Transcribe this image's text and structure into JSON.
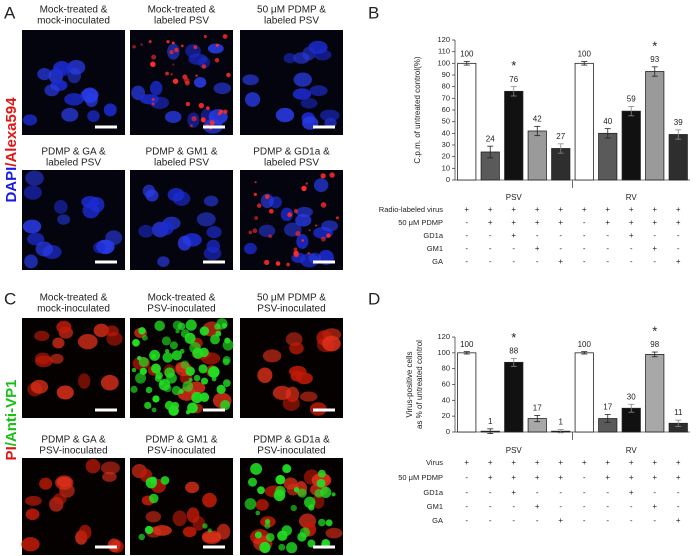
{
  "panels": [
    {
      "label": "A",
      "stain": [
        "DAPI",
        "/Alexa594"
      ],
      "stain_colors": [
        "#1a1ae6",
        "#e01515"
      ],
      "images": [
        {
          "caption": [
            "Mock-treated &",
            "mock-inoculated"
          ]
        },
        {
          "caption": [
            "Mock-treated &",
            "labeled PSV"
          ]
        },
        {
          "caption": [
            "50 μM PDMP &",
            "labeled PSV"
          ]
        },
        {
          "caption": [
            "PDMP & GA &",
            "labeled PSV"
          ]
        },
        {
          "caption": [
            "PDMP & GM1 &",
            "labeled PSV"
          ]
        },
        {
          "caption": [
            "PDMP & GD1a &",
            "labeled PSV"
          ]
        }
      ]
    },
    {
      "label": "C",
      "stain": [
        "PI",
        "/Anti-VP1"
      ],
      "stain_colors": [
        "#e01515",
        "#18c018"
      ],
      "images": [
        {
          "caption": [
            "Mock-treated &",
            "mock-inoculated"
          ]
        },
        {
          "caption": [
            "Mock-treated &",
            "PSV-inoculated"
          ]
        },
        {
          "caption": [
            "50 μM PDMP &",
            "PSV-inoculated"
          ]
        },
        {
          "caption": [
            "PDMP & GA &",
            "PSV-inoculated"
          ]
        },
        {
          "caption": [
            "PDMP & GM1 &",
            "PSV-inoculated"
          ]
        },
        {
          "caption": [
            "PDMP & GD1a &",
            "PSV-inoculated"
          ]
        }
      ]
    }
  ],
  "chart_data": [
    {
      "type": "bar",
      "panel_label": "B",
      "y_label": [
        "C.p.m. of untreated control(%)"
      ],
      "categories": [
        "PSV",
        "RV"
      ],
      "ylim": [
        0,
        120
      ],
      "yticks": [
        0,
        10,
        20,
        30,
        40,
        50,
        60,
        70,
        80,
        90,
        100,
        110,
        120
      ],
      "series": [
        {
          "color": "#ffffff",
          "values": [
            100,
            100
          ],
          "errors": [
            1.5,
            1.5
          ]
        },
        {
          "color": "#5a5a5a",
          "values": [
            24,
            40
          ],
          "errors": [
            5,
            4
          ]
        },
        {
          "color": "#111111",
          "values": [
            76,
            59
          ],
          "errors": [
            4,
            4
          ]
        },
        {
          "color": "#9a9a9a",
          "values": [
            42,
            93
          ],
          "errors": [
            4,
            4
          ]
        },
        {
          "color": "#2e2e2e",
          "values": [
            27,
            39
          ],
          "errors": [
            4,
            4
          ]
        }
      ],
      "annotations": [
        [
          null,
          null
        ],
        [
          null,
          null
        ],
        [
          "*",
          null
        ],
        [
          null,
          "*"
        ],
        [
          null,
          null
        ]
      ],
      "conditions": [
        {
          "label": "Radio-labeled virus",
          "marks": [
            "+",
            "+",
            "+",
            "+",
            "+",
            "+",
            "+",
            "+",
            "+",
            "+"
          ]
        },
        {
          "label": "50 μM PDMP",
          "marks": [
            "-",
            "+",
            "+",
            "+",
            "+",
            "-",
            "+",
            "+",
            "+",
            "+"
          ]
        },
        {
          "label": "GD1a",
          "marks": [
            "-",
            "-",
            "+",
            "-",
            "-",
            "-",
            "-",
            "+",
            "-",
            "-"
          ]
        },
        {
          "label": "GM1",
          "marks": [
            "-",
            "-",
            "-",
            "+",
            "-",
            "-",
            "-",
            "-",
            "+",
            "-"
          ]
        },
        {
          "label": "GA",
          "marks": [
            "-",
            "-",
            "-",
            "-",
            "+",
            "-",
            "-",
            "-",
            "-",
            "+"
          ]
        }
      ]
    },
    {
      "type": "bar",
      "panel_label": "D",
      "y_label": [
        "Virus-positive cells",
        "as % of untreated control"
      ],
      "categories": [
        "PSV",
        "RV"
      ],
      "ylim": [
        0,
        120
      ],
      "yticks": [
        0,
        20,
        40,
        60,
        80,
        100,
        120
      ],
      "series": [
        {
          "color": "#ffffff",
          "values": [
            100,
            100
          ],
          "errors": [
            1.5,
            1.5
          ]
        },
        {
          "color": "#5a5a5a",
          "values": [
            1,
            17
          ],
          "errors": [
            3,
            5
          ]
        },
        {
          "color": "#111111",
          "values": [
            88,
            30
          ],
          "errors": [
            5,
            5
          ]
        },
        {
          "color": "#a8a8a8",
          "values": [
            17,
            98
          ],
          "errors": [
            4,
            3
          ]
        },
        {
          "color": "#2e2e2e",
          "values": [
            1,
            11
          ],
          "errors": [
            2,
            4
          ]
        }
      ],
      "annotations": [
        [
          null,
          null
        ],
        [
          null,
          null
        ],
        [
          "*",
          null
        ],
        [
          null,
          "*"
        ],
        [
          null,
          null
        ]
      ],
      "conditions": [
        {
          "label": "Virus",
          "marks": [
            "+",
            "+",
            "+",
            "+",
            "+",
            "+",
            "+",
            "+",
            "+",
            "+"
          ]
        },
        {
          "label": "50 μM PDMP",
          "marks": [
            "-",
            "+",
            "+",
            "+",
            "+",
            "-",
            "+",
            "+",
            "+",
            "+"
          ]
        },
        {
          "label": "GD1a",
          "marks": [
            "-",
            "-",
            "+",
            "-",
            "-",
            "-",
            "-",
            "+",
            "-",
            "-"
          ]
        },
        {
          "label": "GM1",
          "marks": [
            "-",
            "-",
            "-",
            "+",
            "-",
            "-",
            "-",
            "-",
            "+",
            "-"
          ]
        },
        {
          "label": "GA",
          "marks": [
            "-",
            "-",
            "-",
            "-",
            "+",
            "-",
            "-",
            "-",
            "-",
            "+"
          ]
        }
      ]
    }
  ]
}
